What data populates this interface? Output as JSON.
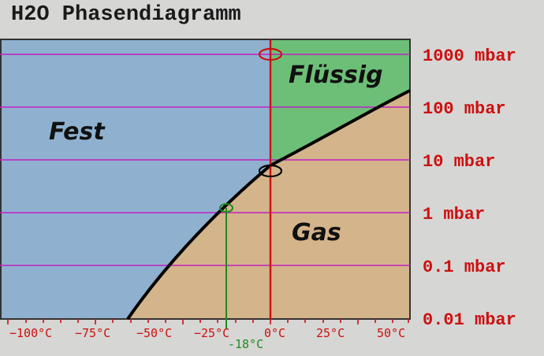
{
  "title": "H2O Phasendiagramm",
  "phases": {
    "solid": "Fest",
    "liquid": "Flüssig",
    "gas": "Gas"
  },
  "pressure_labels": [
    "1000 mbar",
    "100 mbar",
    "10 mbar",
    "1 mbar",
    "0.1 mbar",
    "0.01 mbar"
  ],
  "temperature_labels": [
    "−100°C",
    "−75°C",
    "−50°C",
    "−25°C",
    "0°C",
    "25°C",
    "50°C"
  ],
  "marker_label": "-18°C",
  "colors": {
    "solid": "#8fb1cf",
    "liquid": "#6dbf78",
    "gas": "#d4b48a",
    "isobar": "#c020c0",
    "zero_line": "#cc1010",
    "marker": "#1e8a1e",
    "curve": "#000000"
  }
}
